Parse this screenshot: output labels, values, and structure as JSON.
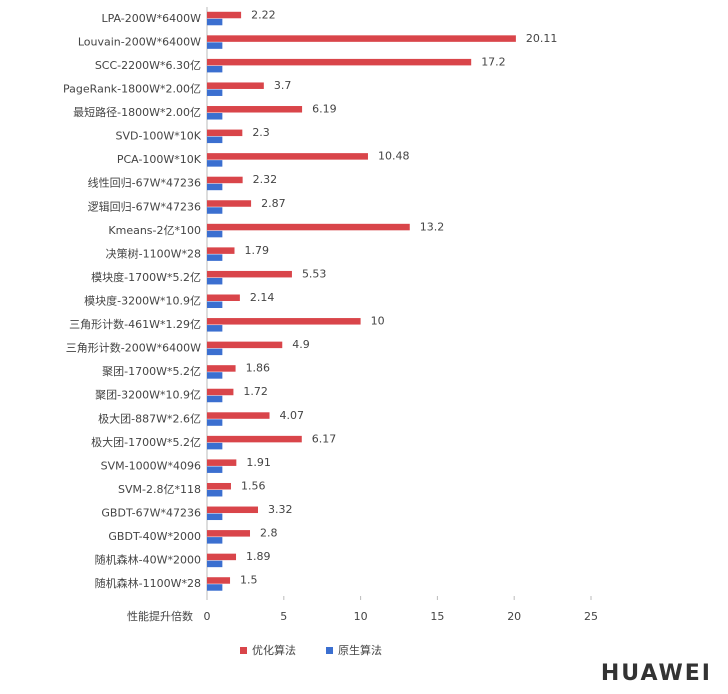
{
  "chart_data": {
    "type": "bar",
    "orientation": "horizontal",
    "x_axis_label": "性能提升倍数",
    "categories": [
      "LPA-200W*6400W",
      "Louvain-200W*6400W",
      "SCC-2200W*6.30亿",
      "PageRank-1800W*2.00亿",
      "最短路径-1800W*2.00亿",
      "SVD-100W*10K",
      "PCA-100W*10K",
      "线性回归-67W*47236",
      "逻辑回归-67W*47236",
      "Kmeans-2亿*100",
      "决策树-1100W*28",
      "模块度-1700W*5.2亿",
      "模块度-3200W*10.9亿",
      "三角形计数-461W*1.29亿",
      "三角形计数-200W*6400W",
      "聚团-1700W*5.2亿",
      "聚团-3200W*10.9亿",
      "极大团-887W*2.6亿",
      "极大团-1700W*5.2亿",
      "SVM-1000W*4096",
      "SVM-2.8亿*118",
      "GBDT-67W*47236",
      "GBDT-40W*2000",
      "随机森林-40W*2000",
      "随机森林-1100W*28"
    ],
    "series": [
      {
        "name": "优化算法",
        "color": "#d9454a",
        "show_labels": true,
        "values": [
          2.22,
          20.11,
          17.2,
          3.7,
          6.19,
          2.3,
          10.48,
          2.32,
          2.87,
          13.2,
          1.79,
          5.53,
          2.14,
          10,
          4.9,
          1.86,
          1.72,
          4.07,
          6.17,
          1.91,
          1.56,
          3.32,
          2.8,
          1.89,
          1.5
        ]
      },
      {
        "name": "原生算法",
        "color": "#3b6fd0",
        "show_labels": false,
        "values": [
          1,
          1,
          1,
          1,
          1,
          1,
          1,
          1,
          1,
          1,
          1,
          1,
          1,
          1,
          1,
          1,
          1,
          1,
          1,
          1,
          1,
          1,
          1,
          1,
          1
        ]
      }
    ],
    "xlim": [
      0,
      25
    ],
    "xticks": [
      0,
      5,
      10,
      15,
      20,
      25
    ],
    "watermark": "HUAWEI"
  }
}
